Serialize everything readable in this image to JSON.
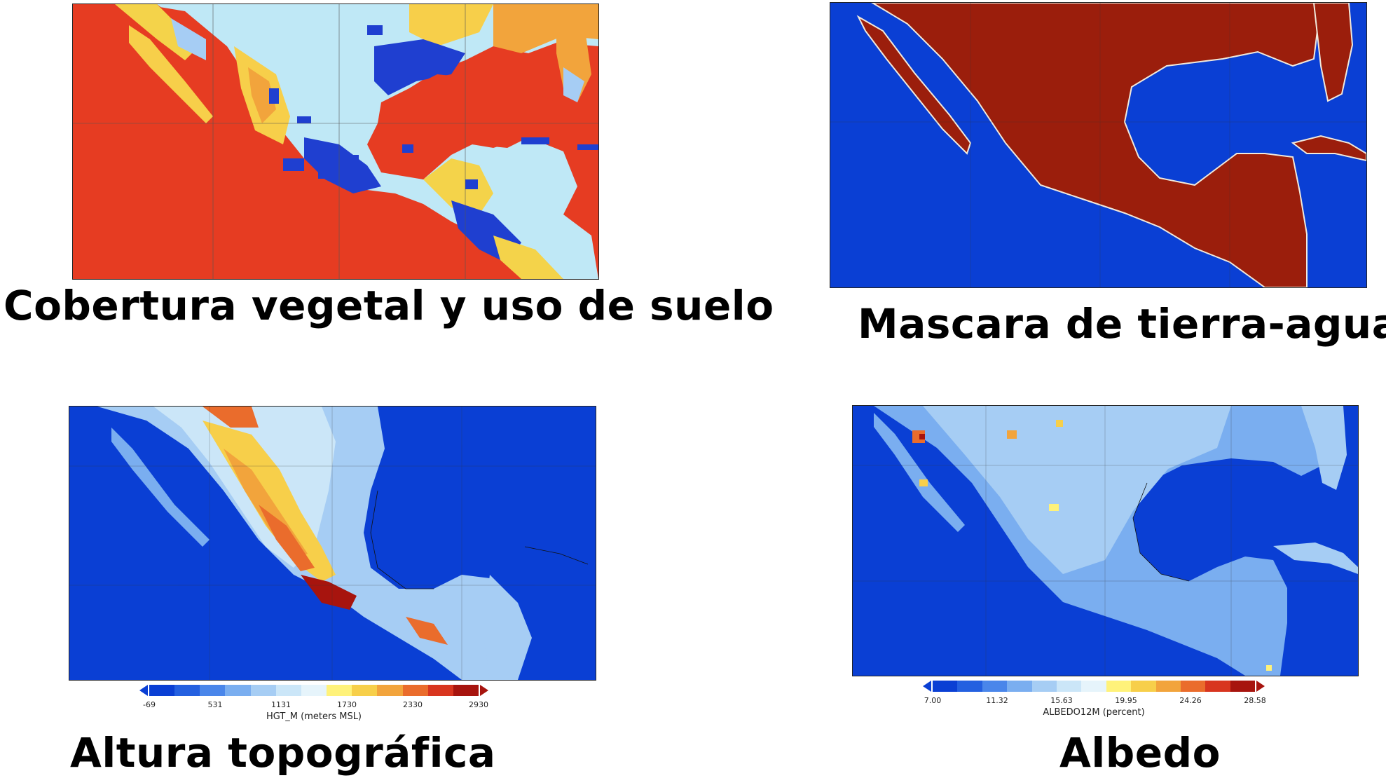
{
  "panels": {
    "landuse": {
      "caption": "Cobertura vegetal y uso de suelo"
    },
    "landmask": {
      "caption": "Mascara de tierra-agua"
    },
    "topo": {
      "caption": "Altura topográfica",
      "colorbar": {
        "label": "HGT_M (meters MSL)",
        "ticks": [
          "-69",
          "531",
          "1131",
          "1730",
          "2330",
          "2930"
        ]
      }
    },
    "albedo": {
      "caption": "Albedo",
      "colorbar": {
        "label": "ALBEDO12M (percent)",
        "ticks": [
          "7.00",
          "11.32",
          "15.63",
          "19.95",
          "24.26",
          "28.58"
        ]
      }
    }
  },
  "colors": {
    "ocean_blue": "#0a3fd4",
    "landuse_water_red": "#e63c22",
    "mask_land": "#9b1e0c",
    "colorscale": [
      "#0a3fd4",
      "#2460e0",
      "#4a86ea",
      "#7aaef0",
      "#a6cdf4",
      "#cbe6f8",
      "#e6f4fb",
      "#fff27a",
      "#f7cf4a",
      "#f2a43c",
      "#ea6c2c",
      "#d8351f",
      "#a7140e"
    ]
  }
}
